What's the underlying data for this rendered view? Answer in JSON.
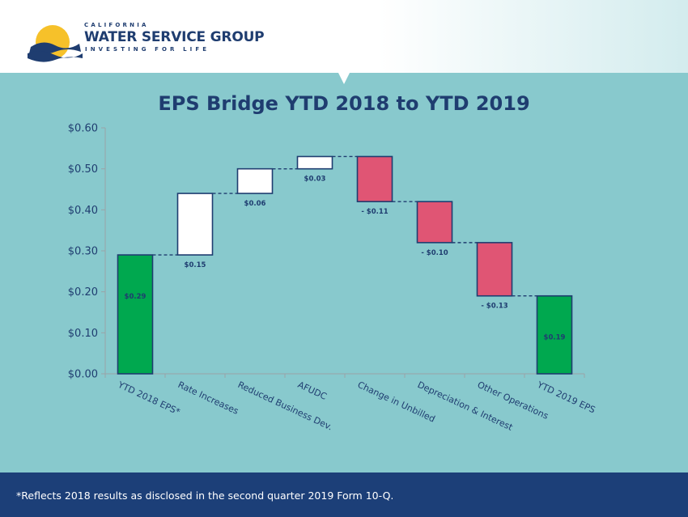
{
  "header": {
    "logo_small": "CALIFORNIA",
    "logo_main": "WATER SERVICE GROUP",
    "logo_tagline": "INVESTING FOR LIFE"
  },
  "colors": {
    "background": "#88c9cd",
    "increase": "#ffffff",
    "decrease": "#e05574",
    "total": "#00a84f",
    "outline": "#1f3d70",
    "footer": "#1c3f78"
  },
  "chart_data": {
    "type": "bar",
    "subtype": "waterfall",
    "title": "EPS Bridge YTD 2018 to YTD 2019",
    "categories": [
      "YTD 2018 EPS*",
      "Rate Increases",
      "Reduced Business Dev.",
      "AFUDC",
      "Change in Unbilled",
      "Depreciation & Interest",
      "Other Operations",
      "YTD 2019 EPS"
    ],
    "values": [
      0.29,
      0.15,
      0.06,
      0.03,
      -0.11,
      -0.1,
      -0.13,
      0.19
    ],
    "kinds": [
      "total",
      "increase",
      "increase",
      "increase",
      "decrease",
      "decrease",
      "decrease",
      "total"
    ],
    "data_labels": [
      "$0.29",
      "$0.15",
      "$0.06",
      "$0.03",
      "- $0.11",
      "- $0.10",
      "- $0.13",
      "$0.19"
    ],
    "ylim": [
      0,
      0.6
    ],
    "yticks": [
      0,
      0.1,
      0.2,
      0.3,
      0.4,
      0.5,
      0.6
    ],
    "ytick_labels": [
      "$0.00",
      "$0.10",
      "$0.20",
      "$0.30",
      "$0.40",
      "$0.50",
      "$0.60"
    ],
    "xlabel": "",
    "ylabel": "",
    "grid": false,
    "legend": "none"
  },
  "footer": {
    "note": "*Reflects 2018 results as disclosed in the second quarter 2019 Form 10-Q."
  }
}
